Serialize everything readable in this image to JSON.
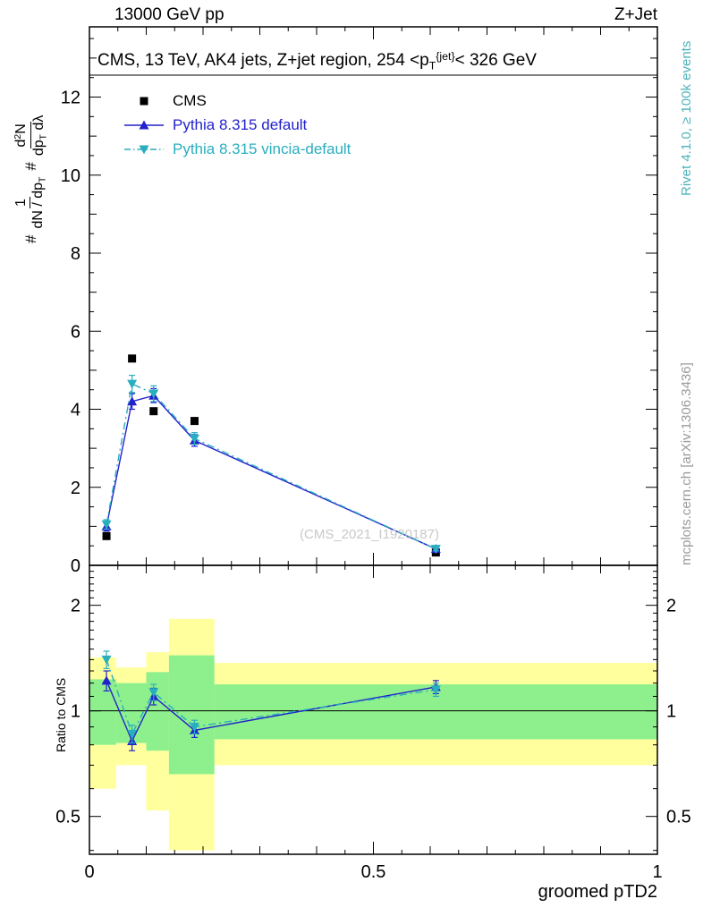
{
  "header": {
    "left": "13000 GeV pp",
    "right": "Z+Jet"
  },
  "labels": {
    "hash": "#",
    "frac1_num": "1",
    "frac1_den": "dN / dp<sub>T</sub>",
    "frac2_num": "d<sup>2</sup>N",
    "frac2_den": "dp<sub>T</sub> dλ",
    "title_html": "CMS, 13 TeV, AK4 jets, Z+jet region, 254 &lt;p<sub>T</sub><sup>{jet}</sup>&lt; 326 GeV",
    "watermark": "(CMS_2021_I1920187)",
    "rivet_info": "Rivet 4.1.0, ≥ 100k events",
    "mcplots_ref": "mcplots.cern.ch [arXiv:1306.3436]"
  },
  "colors": {
    "cms": "#000000",
    "pythia_default": "#2222cc",
    "pythia_vincia": "#29aebe",
    "band_outer": "#ffff9e",
    "band_inner": "#8df08d",
    "rivet_text": "#4fb3ba",
    "mcplots_text": "#9a9a9a",
    "watermark_text": "#c9c9c9"
  },
  "chart_data": [
    {
      "type": "line",
      "panel": "main",
      "title": "CMS, 13 TeV, AK4 jets, Z+jet region, 254 < pT^{jet} < 326 GeV",
      "xlabel": "groomed pTD2",
      "ylabel": "# 1/(dN/dpT) # d2N/(dpT dlambda)",
      "xlim": [
        0,
        1
      ],
      "ylim": [
        0,
        13.8
      ],
      "xticks": [
        0,
        0.5,
        1
      ],
      "xtick_labels": [
        "0",
        "0.5",
        "1"
      ],
      "yticks": [
        0,
        2,
        4,
        6,
        8,
        10,
        12
      ],
      "grid": false,
      "legend_position": "top-left",
      "series": [
        {
          "name": "CMS",
          "marker": "square",
          "color": "#000000",
          "line": "none",
          "x": [
            0.03,
            0.075,
            0.113,
            0.185,
            0.61
          ],
          "y": [
            0.75,
            5.3,
            3.95,
            3.7,
            0.33
          ],
          "yerr": [
            0,
            0,
            0,
            0,
            0
          ]
        },
        {
          "name": "Pythia 8.315 default",
          "marker": "triangle-up",
          "color": "#2222cc",
          "line": "solid",
          "x": [
            0.03,
            0.075,
            0.113,
            0.185,
            0.61
          ],
          "y": [
            1.0,
            4.2,
            4.35,
            3.2,
            0.42
          ],
          "yerr": [
            0.12,
            0.2,
            0.18,
            0.15,
            0.05
          ]
        },
        {
          "name": "Pythia 8.315 vincia-default",
          "marker": "triangle-down",
          "color": "#29aebe",
          "line": "dashdot",
          "x": [
            0.03,
            0.075,
            0.113,
            0.185,
            0.61
          ],
          "y": [
            1.05,
            4.65,
            4.4,
            3.25,
            0.42
          ],
          "yerr": [
            0.12,
            0.22,
            0.2,
            0.15,
            0.05
          ]
        }
      ]
    },
    {
      "type": "ratio",
      "panel": "ratio",
      "ylabel": "Ratio to CMS",
      "yscale": "log",
      "ylim": [
        0.39,
        2.6
      ],
      "yticks": [
        0.5,
        1,
        2
      ],
      "ytick_labels": [
        "0.5",
        "1",
        "2"
      ],
      "reference_line": 1,
      "bands": [
        {
          "name": "data-uncertainty-outer",
          "color": "#ffff9e",
          "bins": [
            [
              0,
              0.047,
              0.6,
              1.42
            ],
            [
              0.047,
              0.1,
              0.7,
              1.33
            ],
            [
              0.1,
              0.14,
              0.52,
              1.47
            ],
            [
              0.14,
              0.22,
              0.4,
              1.83
            ],
            [
              0.22,
              1.0,
              0.7,
              1.37
            ]
          ]
        },
        {
          "name": "data-uncertainty-inner",
          "color": "#8df08d",
          "bins": [
            [
              0,
              0.047,
              0.8,
              1.23
            ],
            [
              0.047,
              0.1,
              0.81,
              1.2
            ],
            [
              0.1,
              0.14,
              0.77,
              1.29
            ],
            [
              0.14,
              0.22,
              0.66,
              1.44
            ],
            [
              0.22,
              1.0,
              0.83,
              1.19
            ]
          ]
        }
      ],
      "series": [
        {
          "name": "Pythia 8.315 default",
          "marker": "triangle-up",
          "color": "#2222cc",
          "line": "solid",
          "x": [
            0.03,
            0.075,
            0.113,
            0.185,
            0.61
          ],
          "y": [
            1.22,
            0.82,
            1.1,
            0.88,
            1.17
          ],
          "yerr": [
            0.08,
            0.05,
            0.06,
            0.04,
            0.05
          ]
        },
        {
          "name": "Pythia 8.315 vincia-default",
          "marker": "triangle-down",
          "color": "#29aebe",
          "line": "dashdot",
          "x": [
            0.03,
            0.075,
            0.113,
            0.185,
            0.61
          ],
          "y": [
            1.4,
            0.86,
            1.13,
            0.9,
            1.15
          ],
          "yerr": [
            0.08,
            0.05,
            0.06,
            0.04,
            0.05
          ]
        }
      ]
    }
  ]
}
